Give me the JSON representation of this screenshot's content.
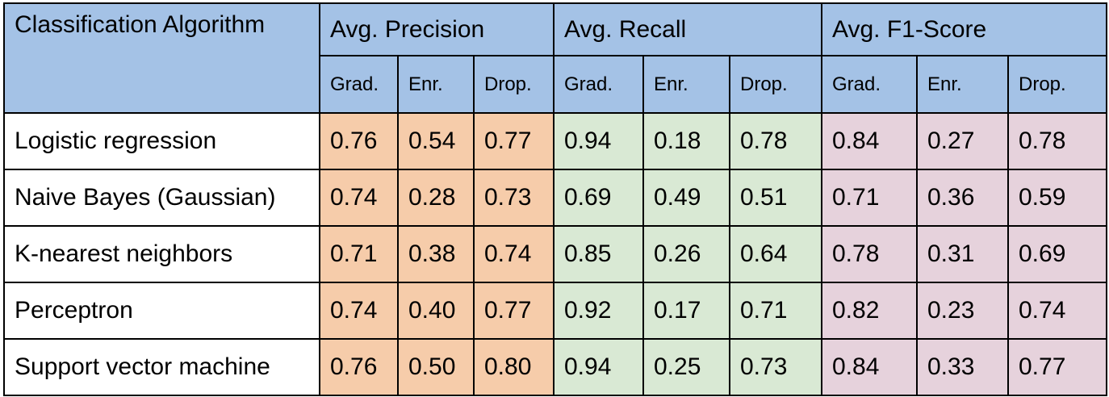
{
  "table": {
    "algorithm_header": "Classification Algorithm",
    "groups": [
      {
        "label": "Avg. Precision",
        "color": "#f6ccaa"
      },
      {
        "label": "Avg. Recall",
        "color": "#d9e9d4"
      },
      {
        "label": "Avg. F1-Score",
        "color": "#e6d2dc"
      }
    ],
    "subheaders": [
      "Grad.",
      "Enr.",
      "Drop."
    ],
    "header_color": "#a4c2e6",
    "rows": [
      {
        "name": "Logistic regression",
        "values": [
          "0.76",
          "0.54",
          "0.77",
          "0.94",
          "0.18",
          "0.78",
          "0.84",
          "0.27",
          "0.78"
        ]
      },
      {
        "name": "Naive Bayes (Gaussian)",
        "values": [
          "0.74",
          "0.28",
          "0.73",
          "0.69",
          "0.49",
          "0.51",
          "0.71",
          "0.36",
          "0.59"
        ]
      },
      {
        "name": "K-nearest neighbors",
        "values": [
          "0.71",
          "0.38",
          "0.74",
          "0.85",
          "0.26",
          "0.64",
          "0.78",
          "0.31",
          "0.69"
        ]
      },
      {
        "name": "Perceptron",
        "values": [
          "0.74",
          "0.40",
          "0.77",
          "0.92",
          "0.17",
          "0.71",
          "0.82",
          "0.23",
          "0.74"
        ]
      },
      {
        "name": "Support vector machine",
        "values": [
          "0.76",
          "0.50",
          "0.80",
          "0.94",
          "0.25",
          "0.73",
          "0.84",
          "0.33",
          "0.77"
        ]
      }
    ]
  }
}
